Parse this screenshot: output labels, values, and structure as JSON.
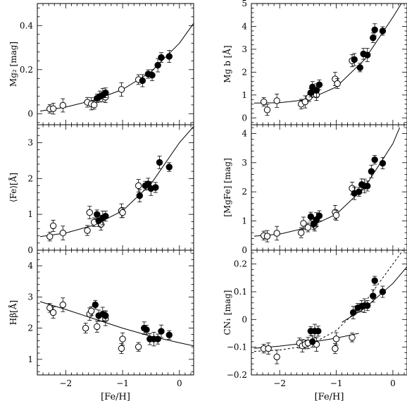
{
  "figure": {
    "shared_xlabel": "[Fe/H]",
    "x_tick_labels": [
      "−2",
      "−1",
      "0"
    ]
  },
  "chart_data": [
    {
      "type": "scatter",
      "panel": "Mg2",
      "ylabel": "Mg₂ [mag]",
      "xlim": [
        -2.5,
        0.25
      ],
      "ylim": [
        -0.05,
        0.5
      ],
      "yticks": [
        0,
        0.2,
        0.4
      ],
      "ytick_labels": [
        "0",
        "0.2",
        "0.4"
      ],
      "series": [
        {
          "marker": "open",
          "points": [
            [
              -2.28,
              0.022
            ],
            [
              -2.22,
              0.023
            ],
            [
              -2.05,
              0.038
            ],
            [
              -1.62,
              0.052
            ],
            [
              -1.55,
              0.045
            ],
            [
              -1.5,
              0.04
            ],
            [
              -1.3,
              0.075
            ],
            [
              -1.02,
              0.11
            ],
            [
              -0.72,
              0.155
            ]
          ]
        },
        {
          "marker": "filled",
          "points": [
            [
              -1.45,
              0.07
            ],
            [
              -1.4,
              0.078
            ],
            [
              -1.35,
              0.085
            ],
            [
              -1.3,
              0.095
            ],
            [
              -0.65,
              0.15
            ],
            [
              -0.55,
              0.18
            ],
            [
              -0.48,
              0.175
            ],
            [
              -0.38,
              0.22
            ],
            [
              -0.32,
              0.255
            ],
            [
              -0.18,
              0.26
            ]
          ]
        }
      ],
      "fit_curves": [
        {
          "style": "solid",
          "points": [
            [
              -2.45,
              0.012
            ],
            [
              -2.0,
              0.03
            ],
            [
              -1.5,
              0.062
            ],
            [
              -1.0,
              0.11
            ],
            [
              -0.5,
              0.19
            ],
            [
              0.0,
              0.32
            ],
            [
              0.25,
              0.41
            ]
          ]
        }
      ]
    },
    {
      "type": "scatter",
      "panel": "Mgb",
      "ylabel": "Mg b [Å]",
      "xlim": [
        -2.5,
        0.25
      ],
      "ylim": [
        -0.3,
        5
      ],
      "yticks": [
        0,
        1,
        2,
        3,
        4,
        5
      ],
      "ytick_labels": [
        "0",
        "1",
        "2",
        "3",
        "4",
        "5"
      ],
      "series": [
        {
          "marker": "open",
          "points": [
            [
              -2.28,
              0.7
            ],
            [
              -2.22,
              0.35
            ],
            [
              -2.05,
              0.75
            ],
            [
              -1.62,
              0.6
            ],
            [
              -1.55,
              0.7
            ],
            [
              -1.48,
              0.9
            ],
            [
              -1.35,
              1.0
            ],
            [
              -1.02,
              1.7
            ],
            [
              -0.98,
              1.5
            ],
            [
              -0.72,
              2.5
            ]
          ]
        },
        {
          "marker": "filled",
          "points": [
            [
              -1.45,
              1.1
            ],
            [
              -1.42,
              1.35
            ],
            [
              -1.35,
              1.2
            ],
            [
              -1.3,
              1.45
            ],
            [
              -0.68,
              2.55
            ],
            [
              -0.58,
              2.2
            ],
            [
              -0.52,
              2.8
            ],
            [
              -0.45,
              2.75
            ],
            [
              -0.35,
              3.5
            ],
            [
              -0.32,
              3.85
            ],
            [
              -0.18,
              3.8
            ]
          ]
        }
      ],
      "fit_curves": [
        {
          "style": "solid",
          "points": [
            [
              -2.45,
              0.65
            ],
            [
              -2.0,
              0.66
            ],
            [
              -1.5,
              0.8
            ],
            [
              -1.0,
              1.35
            ],
            [
              -0.5,
              2.55
            ],
            [
              0.0,
              4.4
            ],
            [
              0.15,
              5.0
            ]
          ]
        }
      ]
    },
    {
      "type": "scatter",
      "panel": "Fe",
      "ylabel": "⟨Fe⟩[Å]",
      "xlim": [
        -2.5,
        0.25
      ],
      "ylim": [
        0,
        3.5
      ],
      "yticks": [
        0,
        1,
        2,
        3
      ],
      "ytick_labels": [
        "0",
        "1",
        "2",
        "3"
      ],
      "series": [
        {
          "marker": "open",
          "points": [
            [
              -2.28,
              0.38
            ],
            [
              -2.22,
              0.68
            ],
            [
              -2.05,
              0.48
            ],
            [
              -1.62,
              0.55
            ],
            [
              -1.58,
              1.05
            ],
            [
              -1.5,
              0.78
            ],
            [
              -1.38,
              0.72
            ],
            [
              -1.02,
              1.1
            ],
            [
              -1.0,
              1.05
            ],
            [
              -0.72,
              1.8
            ]
          ]
        },
        {
          "marker": "filled",
          "points": [
            [
              -1.45,
              1.0
            ],
            [
              -1.42,
              0.82
            ],
            [
              -1.35,
              0.9
            ],
            [
              -1.3,
              0.95
            ],
            [
              -0.7,
              1.52
            ],
            [
              -0.6,
              1.8
            ],
            [
              -0.55,
              1.85
            ],
            [
              -0.5,
              1.72
            ],
            [
              -0.42,
              1.75
            ],
            [
              -0.35,
              2.45
            ],
            [
              -0.18,
              2.32
            ]
          ]
        }
      ],
      "fit_curves": [
        {
          "style": "solid",
          "points": [
            [
              -2.45,
              0.38
            ],
            [
              -2.0,
              0.48
            ],
            [
              -1.5,
              0.7
            ],
            [
              -1.0,
              1.1
            ],
            [
              -0.5,
              1.85
            ],
            [
              0.0,
              3.0
            ],
            [
              0.25,
              3.45
            ]
          ]
        }
      ]
    },
    {
      "type": "scatter",
      "panel": "MgFe",
      "ylabel": "[MgFe] [mag]",
      "xlim": [
        -2.5,
        0.25
      ],
      "ylim": [
        0,
        4.3
      ],
      "yticks": [
        0,
        1,
        2,
        3,
        4
      ],
      "ytick_labels": [
        "0",
        "1",
        "2",
        "3",
        "4"
      ],
      "series": [
        {
          "marker": "open",
          "points": [
            [
              -2.28,
              0.5
            ],
            [
              -2.22,
              0.48
            ],
            [
              -2.05,
              0.58
            ],
            [
              -1.62,
              0.6
            ],
            [
              -1.58,
              0.92
            ],
            [
              -1.5,
              0.78
            ],
            [
              -1.38,
              0.85
            ],
            [
              -1.02,
              1.3
            ],
            [
              -1.0,
              1.2
            ],
            [
              -0.72,
              2.12
            ]
          ]
        },
        {
          "marker": "filled",
          "points": [
            [
              -1.45,
              1.15
            ],
            [
              -1.4,
              0.9
            ],
            [
              -1.35,
              1.05
            ],
            [
              -1.3,
              1.18
            ],
            [
              -0.68,
              1.95
            ],
            [
              -0.6,
              2.0
            ],
            [
              -0.55,
              2.25
            ],
            [
              -0.5,
              2.2
            ],
            [
              -0.45,
              2.2
            ],
            [
              -0.38,
              2.7
            ],
            [
              -0.32,
              3.1
            ],
            [
              -0.18,
              2.98
            ]
          ]
        }
      ],
      "fit_curves": [
        {
          "style": "solid",
          "points": [
            [
              -2.45,
              0.48
            ],
            [
              -2.0,
              0.55
            ],
            [
              -1.5,
              0.78
            ],
            [
              -1.0,
              1.23
            ],
            [
              -0.5,
              2.15
            ],
            [
              0.0,
              3.65
            ],
            [
              0.12,
              4.2
            ]
          ]
        }
      ]
    },
    {
      "type": "scatter",
      "panel": "Hbeta",
      "ylabel": "Hβ[Å]",
      "xlim": [
        -2.5,
        0.25
      ],
      "ylim": [
        0.5,
        4.5
      ],
      "yticks": [
        1,
        2,
        3,
        4
      ],
      "ytick_labels": [
        "1",
        "2",
        "3",
        "4"
      ],
      "series": [
        {
          "marker": "open",
          "points": [
            [
              -2.28,
              2.65
            ],
            [
              -2.22,
              2.5
            ],
            [
              -2.05,
              2.75
            ],
            [
              -1.65,
              2.0
            ],
            [
              -1.58,
              2.45
            ],
            [
              -1.55,
              2.55
            ],
            [
              -1.45,
              2.05
            ],
            [
              -1.3,
              2.3
            ],
            [
              -1.02,
              1.35
            ],
            [
              -1.0,
              1.65
            ],
            [
              -0.72,
              1.4
            ]
          ]
        },
        {
          "marker": "filled",
          "points": [
            [
              -1.48,
              2.75
            ],
            [
              -1.42,
              2.4
            ],
            [
              -1.35,
              2.45
            ],
            [
              -1.3,
              2.4
            ],
            [
              -0.62,
              2.0
            ],
            [
              -0.58,
              1.95
            ],
            [
              -0.52,
              1.65
            ],
            [
              -0.45,
              1.65
            ],
            [
              -0.38,
              1.65
            ],
            [
              -0.32,
              1.9
            ],
            [
              -0.18,
              1.78
            ]
          ]
        }
      ],
      "fit_curves": [
        {
          "style": "solid",
          "points": [
            [
              -2.45,
              2.85
            ],
            [
              -2.0,
              2.6
            ],
            [
              -1.5,
              2.3
            ],
            [
              -1.0,
              2.0
            ],
            [
              -0.5,
              1.74
            ],
            [
              0.0,
              1.53
            ],
            [
              0.25,
              1.43
            ]
          ]
        }
      ]
    },
    {
      "type": "scatter",
      "panel": "CN1",
      "ylabel": "CN₁ [mag]",
      "xlim": [
        -2.5,
        0.25
      ],
      "ylim": [
        -0.2,
        0.25
      ],
      "yticks": [
        -0.2,
        -0.1,
        0,
        0.1,
        0.2
      ],
      "ytick_labels": [
        "−0.2",
        "−0.1",
        "0",
        "0.1",
        "0.2"
      ],
      "series": [
        {
          "marker": "open",
          "points": [
            [
              -2.28,
              -0.105
            ],
            [
              -2.2,
              -0.105
            ],
            [
              -2.05,
              -0.135
            ],
            [
              -1.65,
              -0.085
            ],
            [
              -1.6,
              -0.095
            ],
            [
              -1.55,
              -0.09
            ],
            [
              -1.5,
              -0.085
            ],
            [
              -1.35,
              -0.09
            ],
            [
              -1.02,
              -0.105
            ],
            [
              -1.0,
              -0.07
            ],
            [
              -0.72,
              -0.065
            ]
          ]
        },
        {
          "marker": "filled",
          "points": [
            [
              -1.45,
              -0.042
            ],
            [
              -1.42,
              -0.08
            ],
            [
              -1.38,
              -0.042
            ],
            [
              -1.32,
              -0.042
            ],
            [
              -0.7,
              0.025
            ],
            [
              -0.62,
              0.042
            ],
            [
              -0.55,
              0.048
            ],
            [
              -0.5,
              0.05
            ],
            [
              -0.45,
              0.05
            ],
            [
              -0.35,
              0.085
            ],
            [
              -0.32,
              0.14
            ],
            [
              -0.18,
              0.1
            ]
          ]
        }
      ],
      "fit_curves": [
        {
          "style": "solid",
          "points": [
            [
              -2.45,
              -0.104
            ],
            [
              -2.0,
              -0.096
            ],
            [
              -1.5,
              -0.084
            ],
            [
              -1.0,
              -0.067
            ],
            [
              -0.6,
              -0.05
            ]
          ]
        },
        {
          "style": "solid",
          "points": [
            [
              -0.9,
              -0.01
            ],
            [
              -0.5,
              0.04
            ],
            [
              0.0,
              0.13
            ],
            [
              0.25,
              0.19
            ]
          ]
        },
        {
          "style": "dashed",
          "points": [
            [
              -2.45,
              -0.115
            ],
            [
              -2.0,
              -0.11
            ],
            [
              -1.5,
              -0.095
            ],
            [
              -1.0,
              -0.04
            ],
            [
              -0.5,
              0.06
            ],
            [
              0.0,
              0.2
            ],
            [
              0.18,
              0.25
            ]
          ]
        }
      ]
    }
  ]
}
